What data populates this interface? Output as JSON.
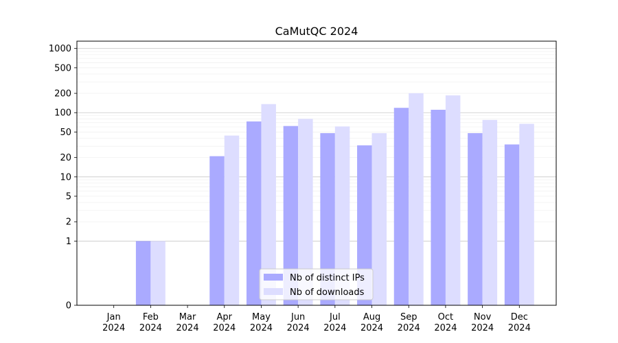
{
  "chart_data": {
    "type": "bar",
    "title": "CaMutQC 2024",
    "xlabel": "",
    "ylabel": "",
    "yscale": "symlog",
    "ylim": [
      0,
      1300
    ],
    "grid": "horizontal",
    "categories": [
      "Jan\n2024",
      "Feb\n2024",
      "Mar\n2024",
      "Apr\n2024",
      "May\n2024",
      "Jun\n2024",
      "Jul\n2024",
      "Aug\n2024",
      "Sep\n2024",
      "Oct\n2024",
      "Nov\n2024",
      "Dec\n2024"
    ],
    "y_ticks": [
      0,
      1,
      2,
      5,
      10,
      20,
      50,
      100,
      200,
      500,
      1000
    ],
    "legend_position": "bottom-center",
    "series": [
      {
        "name": "Nb of distinct IPs",
        "color": "#aaaaff",
        "values": [
          0,
          1,
          0,
          21,
          73,
          62,
          48,
          31,
          119,
          111,
          48,
          32
        ]
      },
      {
        "name": "Nb of downloads",
        "color": "#ddddff",
        "values": [
          0,
          1,
          0,
          44,
          136,
          80,
          61,
          48,
          201,
          186,
          77,
          67
        ]
      }
    ]
  }
}
